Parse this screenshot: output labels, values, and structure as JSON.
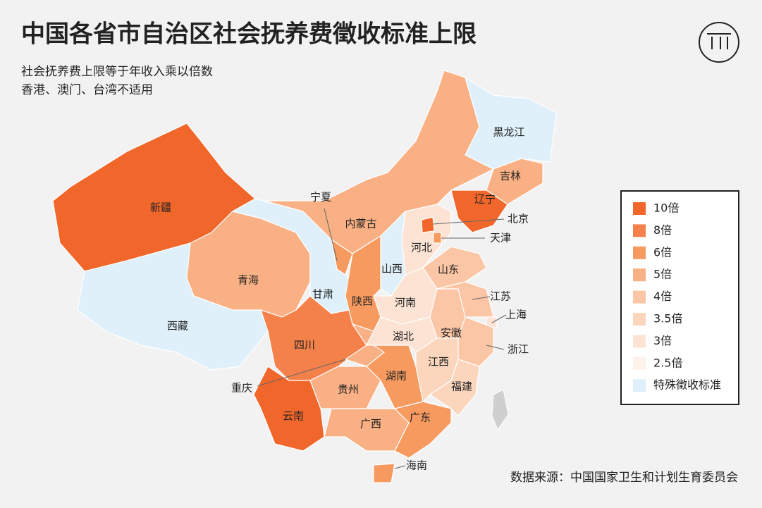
{
  "header": {
    "title": "中国各省市自治区社会抚养费徵收标准上限",
    "subtitle": [
      "社会抚养费上限等于年收入乘以倍数",
      "香港、澳门、台湾不适用"
    ]
  },
  "legend": [
    {
      "label": "10倍",
      "color": "#f1672b"
    },
    {
      "label": "8倍",
      "color": "#f4814a"
    },
    {
      "label": "6倍",
      "color": "#f69a5f"
    },
    {
      "label": "5倍",
      "color": "#f8b084"
    },
    {
      "label": "4倍",
      "color": "#fac6a5"
    },
    {
      "label": "3.5倍",
      "color": "#fbd5bc"
    },
    {
      "label": "3倍",
      "color": "#fce3d4"
    },
    {
      "label": "2.5倍",
      "color": "#fef2ea"
    },
    {
      "label": "特殊徵收标准",
      "color": "#dff0fa"
    }
  ],
  "provinces": [
    {
      "name": "新疆",
      "color": "#f1672b"
    },
    {
      "name": "西藏",
      "color": "#dff0fa"
    },
    {
      "name": "青海",
      "color": "#f8b084"
    },
    {
      "name": "甘肃",
      "color": "#dff0fa"
    },
    {
      "name": "内蒙古",
      "color": "#f8b084"
    },
    {
      "name": "黑龙江",
      "color": "#dff0fa"
    },
    {
      "name": "吉林",
      "color": "#f8b084"
    },
    {
      "name": "辽宁",
      "color": "#f1672b"
    },
    {
      "name": "河北",
      "color": "#fce3d4"
    },
    {
      "name": "北京",
      "color": "#f1672b"
    },
    {
      "name": "天津",
      "color": "#f69a5f"
    },
    {
      "name": "山西",
      "color": "#dff0fa"
    },
    {
      "name": "山东",
      "color": "#fac6a5"
    },
    {
      "name": "河南",
      "color": "#fce3d4"
    },
    {
      "name": "陕西",
      "color": "#f69a5f"
    },
    {
      "name": "宁夏",
      "color": "#f69a5f"
    },
    {
      "name": "四川",
      "color": "#f4814a"
    },
    {
      "name": "重庆",
      "color": "#f8b084"
    },
    {
      "name": "云南",
      "color": "#f1672b"
    },
    {
      "name": "贵州",
      "color": "#f8b084"
    },
    {
      "name": "广西",
      "color": "#f8b084"
    },
    {
      "name": "广东",
      "color": "#f69a5f"
    },
    {
      "name": "海南",
      "color": "#f69a5f"
    },
    {
      "name": "湖南",
      "color": "#f69a5f"
    },
    {
      "name": "湖北",
      "color": "#fce3d4"
    },
    {
      "name": "安徽",
      "color": "#fac6a5"
    },
    {
      "name": "江苏",
      "color": "#fac6a5"
    },
    {
      "name": "上海",
      "color": "#fce3d4"
    },
    {
      "name": "浙江",
      "color": "#fac6a5"
    },
    {
      "name": "江西",
      "color": "#fbd5bc"
    },
    {
      "name": "福建",
      "color": "#fbd5bc"
    }
  ],
  "source": "数据来源：中国国家卫生和计划生育委员会"
}
